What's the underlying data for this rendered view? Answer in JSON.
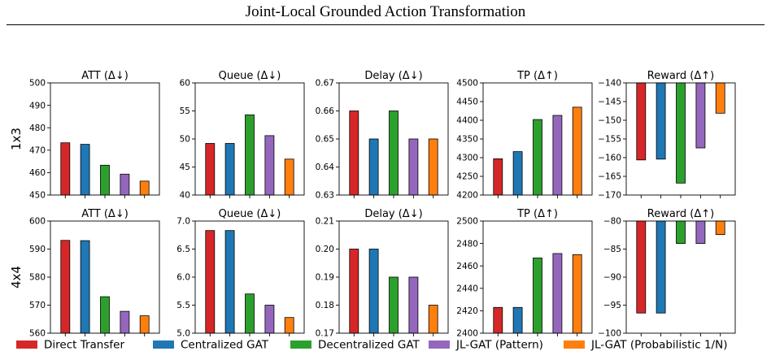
{
  "header": {
    "title": "Joint-Local Grounded Action Transformation"
  },
  "colors": {
    "Direct Transfer": "#d62728",
    "Centralized GAT": "#1f77b4",
    "Decentralized GAT": "#2ca02c",
    "JL-GAT (Pattern)": "#9467bd",
    "JL-GAT (Probabilistic 1/N)": "#ff7f0e"
  },
  "legend": [
    "Direct Transfer",
    "Centralized GAT",
    "Decentralized GAT",
    "JL-GAT (Pattern)",
    "JL-GAT (Probabilistic 1/N)"
  ],
  "row_labels": [
    "1x3",
    "4x4"
  ],
  "chart_data": [
    {
      "type": "bar",
      "row": "1x3",
      "title": "ATT (Δ↓)",
      "ylim": [
        450,
        500
      ],
      "yticks": [
        "450",
        "460",
        "470",
        "480",
        "490",
        "500"
      ],
      "categories": [
        "Direct Transfer",
        "Centralized GAT",
        "Decentralized GAT",
        "JL-GAT (Pattern)",
        "JL-GAT (Probabilistic 1/N)"
      ],
      "values": [
        473.3,
        472.6,
        463.3,
        459.3,
        456.2
      ]
    },
    {
      "type": "bar",
      "row": "1x3",
      "title": "Queue (Δ↓)",
      "ylim": [
        40,
        60
      ],
      "yticks": [
        "40",
        "45",
        "50",
        "55",
        "60"
      ],
      "categories": [
        "Direct Transfer",
        "Centralized GAT",
        "Decentralized GAT",
        "JL-GAT (Pattern)",
        "JL-GAT (Probabilistic 1/N)"
      ],
      "values": [
        49.2,
        49.2,
        54.3,
        50.6,
        46.4
      ]
    },
    {
      "type": "bar",
      "row": "1x3",
      "title": "Delay (Δ↓)",
      "ylim": [
        0.63,
        0.67
      ],
      "yticks": [
        "0.63",
        "0.64",
        "0.65",
        "0.66",
        "0.67"
      ],
      "categories": [
        "Direct Transfer",
        "Centralized GAT",
        "Decentralized GAT",
        "JL-GAT (Pattern)",
        "JL-GAT (Probabilistic 1/N)"
      ],
      "values": [
        0.66,
        0.65,
        0.66,
        0.65,
        0.65
      ]
    },
    {
      "type": "bar",
      "row": "1x3",
      "title": "TP (Δ↑)",
      "ylim": [
        4200,
        4500
      ],
      "yticks": [
        "4200",
        "4250",
        "4300",
        "4350",
        "4400",
        "4450",
        "4500"
      ],
      "categories": [
        "Direct Transfer",
        "Centralized GAT",
        "Decentralized GAT",
        "JL-GAT (Pattern)",
        "JL-GAT (Probabilistic 1/N)"
      ],
      "values": [
        4297,
        4316,
        4402,
        4413,
        4435
      ]
    },
    {
      "type": "bar",
      "row": "1x3",
      "title": "Reward (Δ↑)",
      "ylim": [
        -170,
        -140
      ],
      "yticks": [
        "−170",
        "−165",
        "−160",
        "−155",
        "−150",
        "−145",
        "−140"
      ],
      "categories": [
        "Direct Transfer",
        "Centralized GAT",
        "Decentralized GAT",
        "JL-GAT (Pattern)",
        "JL-GAT (Probabilistic 1/N)"
      ],
      "values": [
        -160.6,
        -160.4,
        -166.8,
        -157.4,
        -148.1
      ]
    },
    {
      "type": "bar",
      "row": "4x4",
      "title": "ATT (Δ↓)",
      "ylim": [
        560,
        600
      ],
      "yticks": [
        "560",
        "570",
        "580",
        "590",
        "600"
      ],
      "categories": [
        "Direct Transfer",
        "Centralized GAT",
        "Decentralized GAT",
        "JL-GAT (Pattern)",
        "JL-GAT (Probabilistic 1/N)"
      ],
      "values": [
        593.1,
        593.0,
        573.0,
        567.8,
        566.2
      ]
    },
    {
      "type": "bar",
      "row": "4x4",
      "title": "Queue (Δ↓)",
      "ylim": [
        5.0,
        7.0
      ],
      "yticks": [
        "5.0",
        "5.5",
        "6.0",
        "6.5",
        "7.0"
      ],
      "categories": [
        "Direct Transfer",
        "Centralized GAT",
        "Decentralized GAT",
        "JL-GAT (Pattern)",
        "JL-GAT (Probabilistic 1/N)"
      ],
      "values": [
        6.83,
        6.83,
        5.7,
        5.5,
        5.28
      ]
    },
    {
      "type": "bar",
      "row": "4x4",
      "title": "Delay (Δ↓)",
      "ylim": [
        0.17,
        0.21
      ],
      "yticks": [
        "0.17",
        "0.18",
        "0.19",
        "0.20",
        "0.21"
      ],
      "categories": [
        "Direct Transfer",
        "Centralized GAT",
        "Decentralized GAT",
        "JL-GAT (Pattern)",
        "JL-GAT (Probabilistic 1/N)"
      ],
      "values": [
        0.2,
        0.2,
        0.19,
        0.19,
        0.18
      ]
    },
    {
      "type": "bar",
      "row": "4x4",
      "title": "TP (Δ↑)",
      "ylim": [
        2400,
        2500
      ],
      "yticks": [
        "2400",
        "2420",
        "2440",
        "2460",
        "2480",
        "2500"
      ],
      "categories": [
        "Direct Transfer",
        "Centralized GAT",
        "Decentralized GAT",
        "JL-GAT (Pattern)",
        "JL-GAT (Probabilistic 1/N)"
      ],
      "values": [
        2423,
        2423,
        2467,
        2471,
        2470
      ]
    },
    {
      "type": "bar",
      "row": "4x4",
      "title": "Reward (Δ↑)",
      "ylim": [
        -100,
        -80
      ],
      "yticks": [
        "−100",
        "−95",
        "−90",
        "−85",
        "−80"
      ],
      "categories": [
        "Direct Transfer",
        "Centralized GAT",
        "Decentralized GAT",
        "JL-GAT (Pattern)",
        "JL-GAT (Probabilistic 1/N)"
      ],
      "values": [
        -96.4,
        -96.4,
        -84.0,
        -84.0,
        -82.4
      ]
    }
  ]
}
